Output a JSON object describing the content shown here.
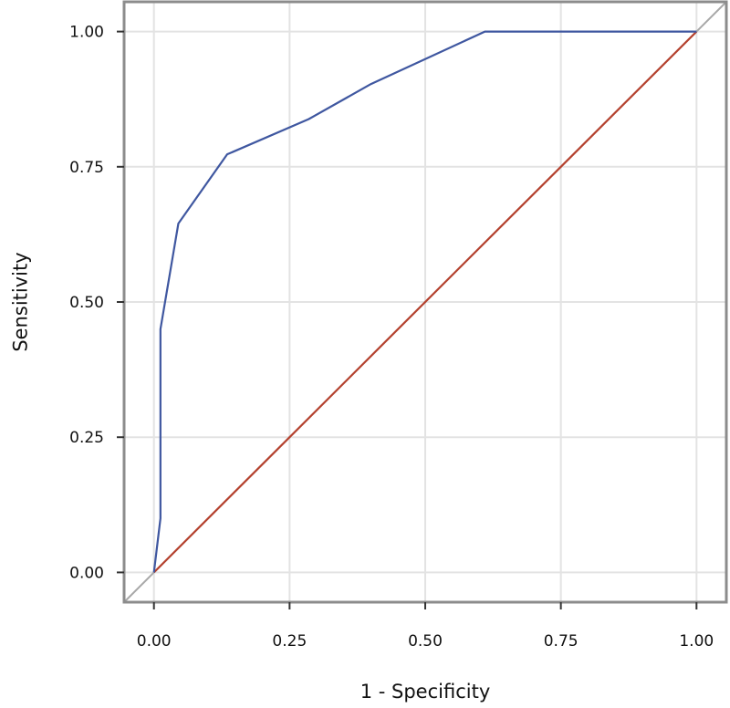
{
  "chart_data": {
    "type": "line",
    "xlabel": "1 - Specificity",
    "ylabel": "Sensitivity",
    "xlim": [
      -0.055,
      1.055
    ],
    "ylim": [
      -0.055,
      1.055
    ],
    "grid": true,
    "x_ticks": [
      0.0,
      0.25,
      0.5,
      0.75,
      1.0
    ],
    "x_tick_labels": [
      "0.00",
      "0.25",
      "0.50",
      "0.75",
      "1.00"
    ],
    "y_ticks": [
      0.0,
      0.25,
      0.5,
      0.75,
      1.0
    ],
    "y_tick_labels": [
      "0.00",
      "0.25",
      "0.50",
      "0.75",
      "1.00"
    ],
    "series": [
      {
        "color": "#3f57a0",
        "x": [
          0.0,
          0.012,
          0.012,
          0.045,
          0.135,
          0.285,
          0.4,
          0.61,
          1.0
        ],
        "y": [
          0.0,
          0.1,
          0.45,
          0.645,
          0.773,
          0.838,
          0.903,
          1.0,
          1.0
        ]
      },
      {
        "color": "#b5412e",
        "x": [
          0.0,
          1.0
        ],
        "y": [
          0.0,
          1.0
        ]
      }
    ],
    "reference_line": {
      "color": "#a8a8a8",
      "x": [
        -0.055,
        1.055
      ],
      "y": [
        -0.055,
        1.055
      ]
    }
  }
}
